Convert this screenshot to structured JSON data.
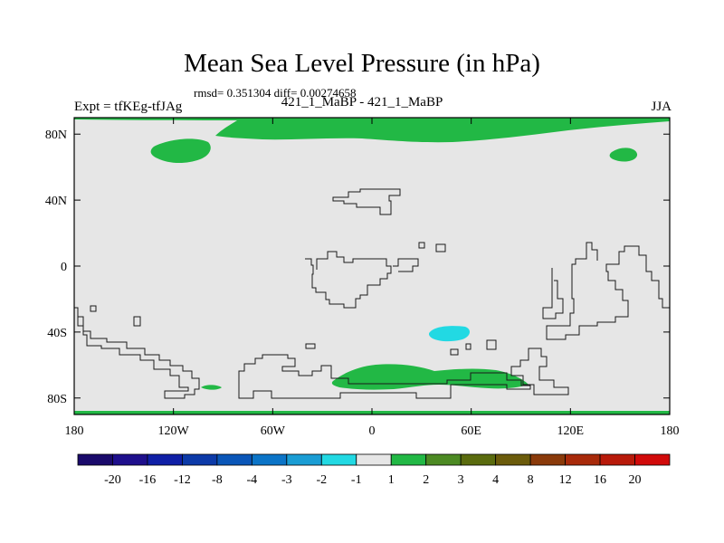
{
  "title": "Mean Sea Level Pressure (in hPa)",
  "stats": "rmsd= 0.351304 diff= 0.00274658",
  "left_label": "Expt = tfKEg-tfJAg",
  "center_label": "421_1_MaBP - 421_1_MaBP",
  "right_label": "JJA",
  "map": {
    "projection": "cylindrical equidistant",
    "lon_range": [
      -180,
      180
    ],
    "lat_range": [
      -90,
      90
    ],
    "x_ticks": [
      {
        "value": -180,
        "label": "180"
      },
      {
        "value": -120,
        "label": "120W"
      },
      {
        "value": -60,
        "label": "60W"
      },
      {
        "value": 0,
        "label": "0"
      },
      {
        "value": 60,
        "label": "60E"
      },
      {
        "value": 120,
        "label": "120E"
      },
      {
        "value": 180,
        "label": "180"
      }
    ],
    "y_ticks": [
      {
        "value": 80,
        "label": "80N"
      },
      {
        "value": 40,
        "label": "40N"
      },
      {
        "value": 0,
        "label": "0"
      },
      {
        "value": -40,
        "label": "40S"
      },
      {
        "value": -80,
        "label": "80S"
      }
    ],
    "background_bin_color": "#e6e6e6",
    "features": [
      {
        "bin": "1 to 2",
        "color": "#22b845",
        "region": "Arctic band"
      },
      {
        "bin": "1 to 2",
        "color": "#22b845",
        "region": "North America high latitudes"
      },
      {
        "bin": "1 to 2",
        "color": "#22b845",
        "region": "Siberia"
      },
      {
        "bin": "1 to 2",
        "color": "#22b845",
        "region": "Antarctic coast"
      },
      {
        "bin": "-2 to -1",
        "color": "#22d9e3",
        "region": "Southern Indian Ocean"
      }
    ]
  },
  "colorbar": {
    "labels": [
      "-20",
      "-16",
      "-12",
      "-8",
      "-4",
      "-3",
      "-2",
      "-1",
      "1",
      "2",
      "3",
      "4",
      "8",
      "12",
      "16",
      "20"
    ],
    "colors": [
      "#1a0a6b",
      "#1e0f8c",
      "#0f1fa6",
      "#0c3aa8",
      "#0a56b8",
      "#0b74c7",
      "#1a9dd4",
      "#22d9e3",
      "#e6e6e6",
      "#22b845",
      "#4c8a23",
      "#5a6b0e",
      "#6b5b0b",
      "#8a3a0a",
      "#a82a0a",
      "#b81a0a",
      "#d10a0a"
    ]
  }
}
